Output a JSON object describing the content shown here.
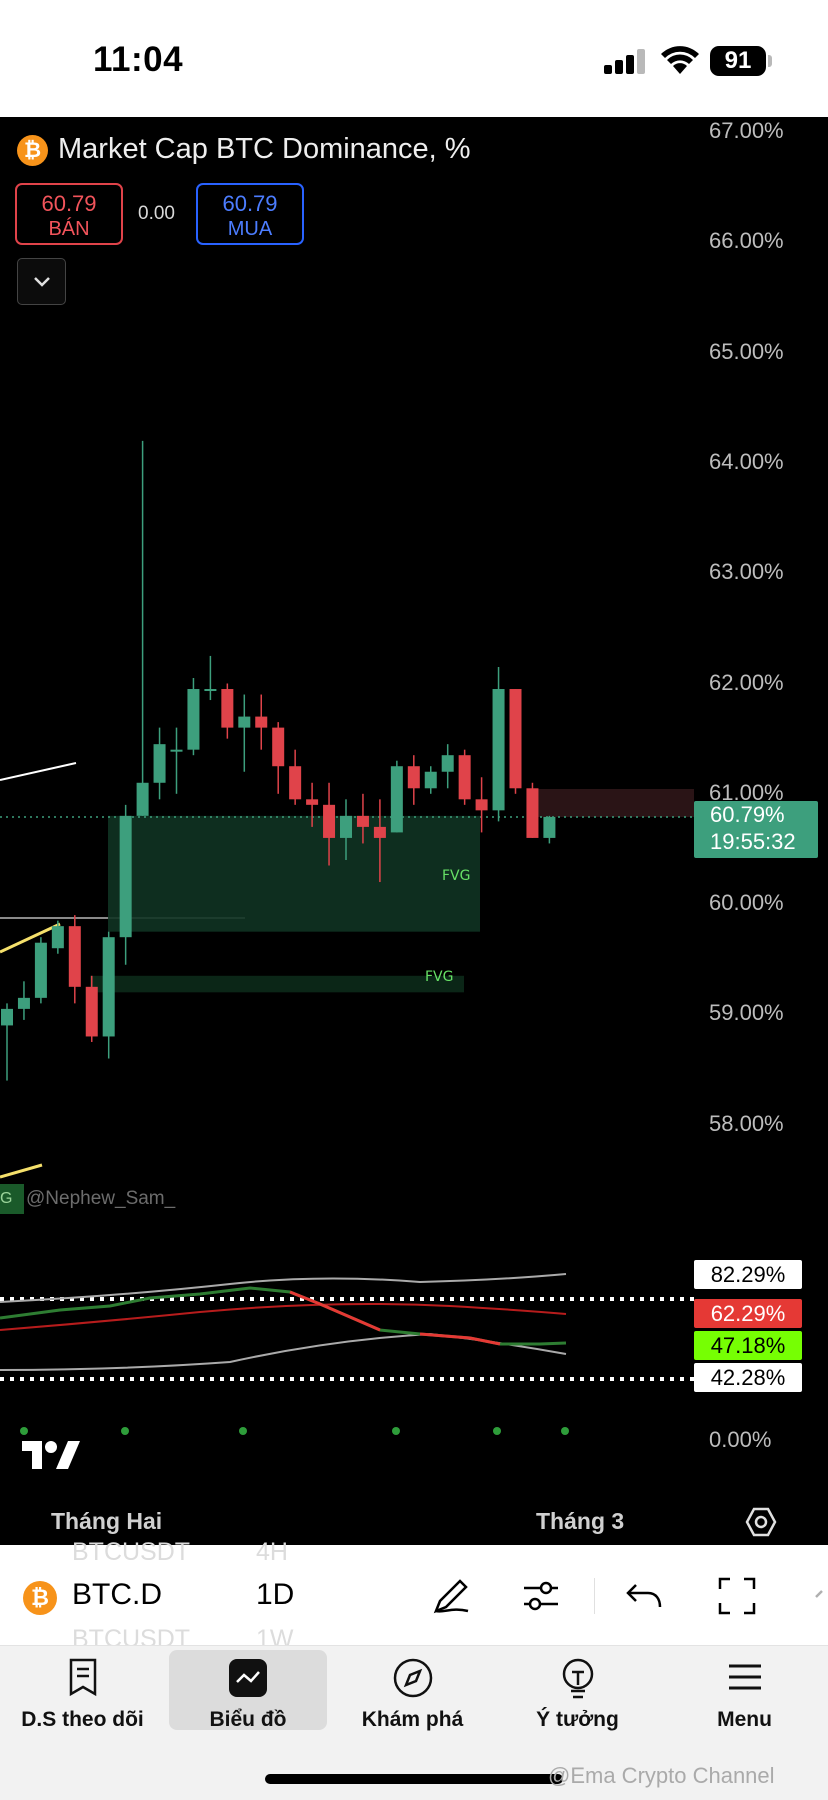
{
  "status_bar": {
    "time": "11:04",
    "battery": "91"
  },
  "header": {
    "title": "Market Cap BTC Dominance, %",
    "symbol_icon": "bitcoin-icon",
    "sell": {
      "price": "60.79",
      "label": "BÁN"
    },
    "spread": "0.00",
    "buy": {
      "price": "60.79",
      "label": "MUA"
    }
  },
  "price_axis": [
    "67.00%",
    "66.00%",
    "65.00%",
    "64.00%",
    "63.00%",
    "62.00%",
    "61.00%",
    "60.00%",
    "59.00%",
    "58.00%"
  ],
  "current_price": {
    "value": "60.79%",
    "countdown": "19:55:32"
  },
  "fvg_labels": [
    "FVG",
    "FVG"
  ],
  "watermark": "@Nephew_Sam_",
  "vg_fragment": "G",
  "indicator": {
    "levels": [
      {
        "label": "82.29%",
        "bg": "#ffffff",
        "fg": "#000000"
      },
      {
        "label": "62.29%",
        "bg": "#e53935",
        "fg": "#ffffff"
      },
      {
        "label": "47.18%",
        "bg": "#76ff03",
        "fg": "#000000"
      },
      {
        "label": "42.28%",
        "bg": "#ffffff",
        "fg": "#000000"
      }
    ],
    "zero_label": "0.00%"
  },
  "time_axis": [
    "Tháng Hai",
    "Tháng 3"
  ],
  "toolbar": {
    "symbol": "BTC.D",
    "interval": "1D",
    "ghost_above": [
      "BTCUSDT",
      "4H"
    ],
    "ghost_below": [
      "BTCUSDT",
      "1W"
    ]
  },
  "nav": [
    {
      "label": "D.S theo dõi",
      "icon": "watchlist-icon"
    },
    {
      "label": "Biểu đồ",
      "icon": "chart-icon",
      "active": true
    },
    {
      "label": "Khám phá",
      "icon": "compass-icon"
    },
    {
      "label": "Ý tưởng",
      "icon": "lightbulb-icon"
    },
    {
      "label": "Menu",
      "icon": "menu-icon"
    }
  ],
  "channel_watermark": "@Ema Crypto Channel",
  "colors": {
    "up": "#3d9f7d",
    "down": "#e0434a",
    "accent_blue": "#2962ff",
    "bitcoin": "#f7931a"
  },
  "chart_data": {
    "type": "candlestick",
    "y_unit": "%",
    "ylim": [
      57.5,
      67.15
    ],
    "yticks": [
      67,
      66,
      65,
      64,
      63,
      62,
      61,
      60,
      59,
      58
    ],
    "candles": [
      {
        "o": 58.9,
        "h": 59.1,
        "l": 58.4,
        "c": 59.05
      },
      {
        "o": 59.05,
        "h": 59.3,
        "l": 58.95,
        "c": 59.15
      },
      {
        "o": 59.15,
        "h": 59.7,
        "l": 59.1,
        "c": 59.65
      },
      {
        "o": 59.6,
        "h": 59.85,
        "l": 59.55,
        "c": 59.8
      },
      {
        "o": 59.8,
        "h": 59.9,
        "l": 59.1,
        "c": 59.25
      },
      {
        "o": 59.25,
        "h": 59.35,
        "l": 58.75,
        "c": 58.8
      },
      {
        "o": 58.8,
        "h": 59.75,
        "l": 58.6,
        "c": 59.7
      },
      {
        "o": 59.7,
        "h": 60.9,
        "l": 59.45,
        "c": 60.8
      },
      {
        "o": 60.8,
        "h": 64.2,
        "l": 60.8,
        "c": 61.1
      },
      {
        "o": 61.1,
        "h": 61.6,
        "l": 60.95,
        "c": 61.45
      },
      {
        "o": 61.4,
        "h": 61.6,
        "l": 61.0,
        "c": 61.4
      },
      {
        "o": 61.4,
        "h": 62.05,
        "l": 61.35,
        "c": 61.95
      },
      {
        "o": 61.95,
        "h": 62.25,
        "l": 61.85,
        "c": 61.95
      },
      {
        "o": 61.95,
        "h": 62.0,
        "l": 61.5,
        "c": 61.6
      },
      {
        "o": 61.6,
        "h": 61.9,
        "l": 61.2,
        "c": 61.7
      },
      {
        "o": 61.7,
        "h": 61.9,
        "l": 61.4,
        "c": 61.6
      },
      {
        "o": 61.6,
        "h": 61.65,
        "l": 61.0,
        "c": 61.25
      },
      {
        "o": 61.25,
        "h": 61.4,
        "l": 60.9,
        "c": 60.95
      },
      {
        "o": 60.95,
        "h": 61.1,
        "l": 60.7,
        "c": 60.9
      },
      {
        "o": 60.9,
        "h": 61.1,
        "l": 60.35,
        "c": 60.6
      },
      {
        "o": 60.6,
        "h": 60.95,
        "l": 60.4,
        "c": 60.8
      },
      {
        "o": 60.8,
        "h": 61.0,
        "l": 60.55,
        "c": 60.7
      },
      {
        "o": 60.7,
        "h": 60.95,
        "l": 60.2,
        "c": 60.6
      },
      {
        "o": 60.65,
        "h": 61.3,
        "l": 60.65,
        "c": 61.25
      },
      {
        "o": 61.25,
        "h": 61.35,
        "l": 60.9,
        "c": 61.05
      },
      {
        "o": 61.05,
        "h": 61.25,
        "l": 61.0,
        "c": 61.2
      },
      {
        "o": 61.2,
        "h": 61.45,
        "l": 61.05,
        "c": 61.35
      },
      {
        "o": 61.35,
        "h": 61.4,
        "l": 60.9,
        "c": 60.95
      },
      {
        "o": 60.95,
        "h": 61.15,
        "l": 60.65,
        "c": 60.85
      },
      {
        "o": 60.85,
        "h": 62.15,
        "l": 60.75,
        "c": 61.95
      },
      {
        "o": 61.95,
        "h": 61.95,
        "l": 61.0,
        "c": 61.05
      },
      {
        "o": 61.05,
        "h": 61.1,
        "l": 60.6,
        "c": 60.6
      },
      {
        "o": 60.6,
        "h": 60.8,
        "l": 60.55,
        "c": 60.79
      }
    ],
    "last_price": 60.79,
    "fvg_zones": [
      {
        "y_top": 60.8,
        "y_bottom": 59.75
      },
      {
        "y_top": 59.35,
        "y_bottom": 59.2
      }
    ],
    "time_labels": [
      "Tháng Hai",
      "Tháng 3"
    ]
  }
}
